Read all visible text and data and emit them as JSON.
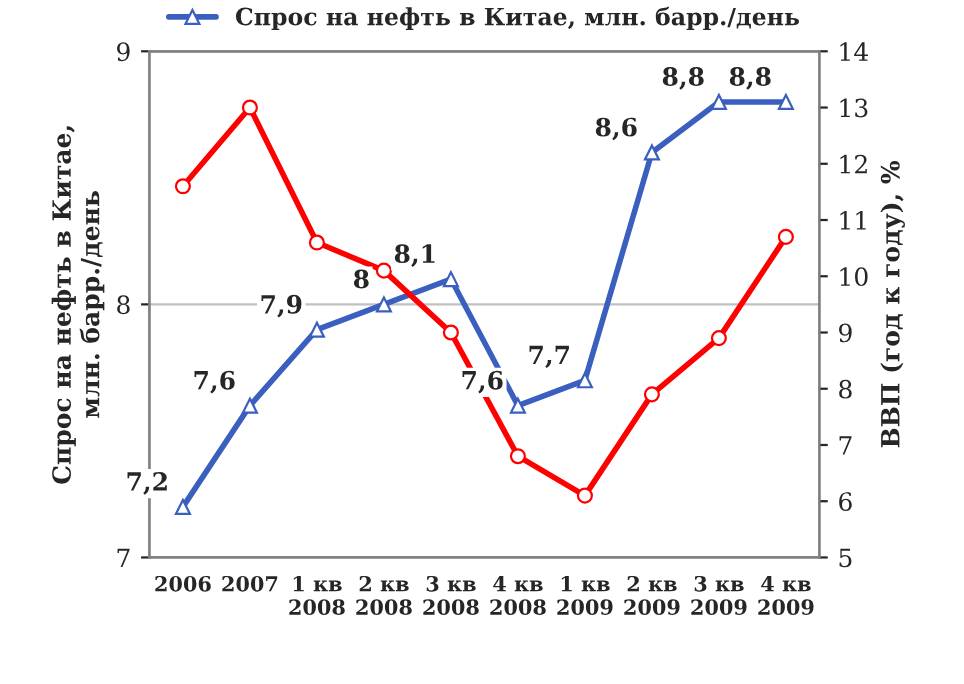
{
  "chart_data": {
    "type": "line",
    "categories": [
      "2006",
      "2007",
      "1 кв\n2008",
      "2 кв\n2008",
      "3 кв\n2008",
      "4 кв\n2008",
      "1 кв\n2009",
      "2 кв\n2009",
      "3 кв\n2009",
      "4 кв\n2009"
    ],
    "series": [
      {
        "name": "Спрос на нефть в Китае, млн. барр./день",
        "color": "#3a5fbf",
        "marker": "triangle",
        "values": [
          7.2,
          7.6,
          7.9,
          8.0,
          8.1,
          7.6,
          7.7,
          8.6,
          8.8,
          8.8
        ],
        "value_labels": [
          "7,2",
          "7,6",
          "7,9",
          "8",
          "8,1",
          "7,6",
          "7,7",
          "8,6",
          "8,8",
          "8,8"
        ]
      },
      {
        "color": "#ff0000",
        "marker": "circle",
        "axis": "y2",
        "values": [
          11.6,
          13.0,
          10.6,
          10.1,
          9.0,
          6.8,
          6.1,
          7.9,
          8.9,
          10.7
        ]
      }
    ],
    "ylabel": "Спрос на нефть в Китае,\nмлн. барр./день",
    "y2label": "ВВП (год к году), %",
    "ylim": [
      7,
      9
    ],
    "yticks": [
      7,
      8,
      9
    ],
    "y2lim": [
      5,
      14
    ],
    "y2ticks": [
      5,
      6,
      7,
      8,
      9,
      10,
      11,
      12,
      13,
      14
    ],
    "grid": "y",
    "legend": "top",
    "line_style": "solid"
  }
}
